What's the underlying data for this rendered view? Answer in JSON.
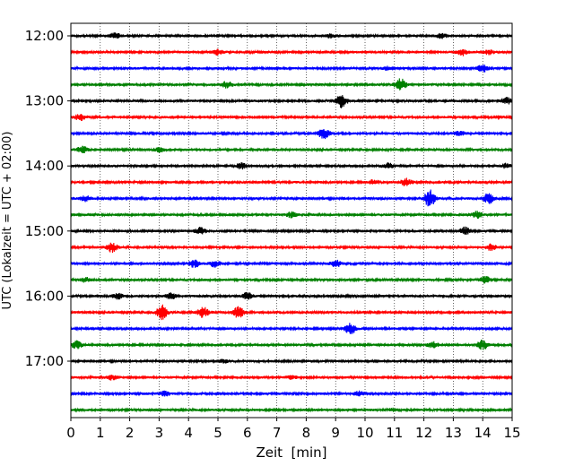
{
  "chart_data": {
    "type": "line",
    "title": "",
    "xlabel": "Zeit  [min]",
    "ylabel": "UTC (Lokalzeit = UTC + 02:00)",
    "xlim": [
      0,
      15
    ],
    "x_ticks": [
      0,
      1,
      2,
      3,
      4,
      5,
      6,
      7,
      8,
      9,
      10,
      11,
      12,
      13,
      14,
      15
    ],
    "x_tick_labels": [
      "0",
      "1",
      "2",
      "3",
      "4",
      "5",
      "6",
      "7",
      "8",
      "9",
      "10",
      "11",
      "12",
      "13",
      "14",
      "15"
    ],
    "y_tick_labels": [
      "12:00",
      "13:00",
      "14:00",
      "15:00",
      "16:00",
      "17:00"
    ],
    "grid": "vertical dotted lines at each minute",
    "trace_interval_min": 15,
    "color_cycle": [
      "#000000",
      "#ff0000",
      "#0000ff",
      "#008000"
    ],
    "series": [
      {
        "start": "12:00",
        "color": "#000000",
        "events": [
          {
            "t": 1.5,
            "amp": 0.25
          },
          {
            "t": 8.8,
            "amp": 0.15
          },
          {
            "t": 12.6,
            "amp": 0.2
          }
        ]
      },
      {
        "start": "12:15",
        "color": "#ff0000",
        "events": [
          {
            "t": 5.0,
            "amp": 0.25
          },
          {
            "t": 13.3,
            "amp": 0.3
          },
          {
            "t": 14.2,
            "amp": 0.2
          }
        ]
      },
      {
        "start": "12:30",
        "color": "#0000ff",
        "events": [
          {
            "t": 10.8,
            "amp": 0.15
          },
          {
            "t": 14.0,
            "amp": 0.35
          }
        ]
      },
      {
        "start": "12:45",
        "color": "#008000",
        "events": [
          {
            "t": 5.3,
            "amp": 0.3
          },
          {
            "t": 11.2,
            "amp": 0.6
          }
        ]
      },
      {
        "start": "13:00",
        "color": "#000000",
        "events": [
          {
            "t": 9.2,
            "amp": 0.65
          },
          {
            "t": 14.8,
            "amp": 0.3
          }
        ]
      },
      {
        "start": "13:15",
        "color": "#ff0000",
        "events": [
          {
            "t": 0.3,
            "amp": 0.3
          },
          {
            "t": 14.5,
            "amp": 0.15
          }
        ]
      },
      {
        "start": "13:30",
        "color": "#0000ff",
        "events": [
          {
            "t": 8.6,
            "amp": 0.55
          },
          {
            "t": 13.2,
            "amp": 0.2
          }
        ]
      },
      {
        "start": "13:45",
        "color": "#008000",
        "events": [
          {
            "t": 0.4,
            "amp": 0.3
          },
          {
            "t": 3.0,
            "amp": 0.2
          }
        ]
      },
      {
        "start": "14:00",
        "color": "#000000",
        "events": [
          {
            "t": 5.8,
            "amp": 0.25
          },
          {
            "t": 10.8,
            "amp": 0.25
          },
          {
            "t": 14.8,
            "amp": 0.2
          }
        ]
      },
      {
        "start": "14:15",
        "color": "#ff0000",
        "events": [
          {
            "t": 10.3,
            "amp": 0.2
          },
          {
            "t": 11.4,
            "amp": 0.35
          }
        ]
      },
      {
        "start": "14:30",
        "color": "#0000ff",
        "events": [
          {
            "t": 0.5,
            "amp": 0.25
          },
          {
            "t": 12.2,
            "amp": 0.85
          },
          {
            "t": 14.2,
            "amp": 0.5
          }
        ]
      },
      {
        "start": "14:45",
        "color": "#008000",
        "events": [
          {
            "t": 7.5,
            "amp": 0.25
          },
          {
            "t": 13.8,
            "amp": 0.3
          }
        ]
      },
      {
        "start": "15:00",
        "color": "#000000",
        "events": [
          {
            "t": 4.4,
            "amp": 0.3
          },
          {
            "t": 13.4,
            "amp": 0.35
          }
        ]
      },
      {
        "start": "15:15",
        "color": "#ff0000",
        "events": [
          {
            "t": 1.4,
            "amp": 0.45
          },
          {
            "t": 14.3,
            "amp": 0.3
          }
        ]
      },
      {
        "start": "15:30",
        "color": "#0000ff",
        "events": [
          {
            "t": 4.2,
            "amp": 0.35
          },
          {
            "t": 4.9,
            "amp": 0.3
          },
          {
            "t": 9.0,
            "amp": 0.35
          }
        ]
      },
      {
        "start": "15:45",
        "color": "#008000",
        "events": [
          {
            "t": 0.5,
            "amp": 0.2
          },
          {
            "t": 14.1,
            "amp": 0.3
          }
        ]
      },
      {
        "start": "16:00",
        "color": "#000000",
        "events": [
          {
            "t": 1.6,
            "amp": 0.25
          },
          {
            "t": 3.4,
            "amp": 0.3
          },
          {
            "t": 6.0,
            "amp": 0.3
          }
        ]
      },
      {
        "start": "16:15",
        "color": "#ff0000",
        "events": [
          {
            "t": 3.1,
            "amp": 0.75
          },
          {
            "t": 4.5,
            "amp": 0.5
          },
          {
            "t": 5.7,
            "amp": 0.55
          }
        ]
      },
      {
        "start": "16:30",
        "color": "#0000ff",
        "events": [
          {
            "t": 9.5,
            "amp": 0.55
          }
        ]
      },
      {
        "start": "16:45",
        "color": "#008000",
        "events": [
          {
            "t": 0.2,
            "amp": 0.35
          },
          {
            "t": 12.3,
            "amp": 0.3
          },
          {
            "t": 14.0,
            "amp": 0.45
          }
        ]
      },
      {
        "start": "17:00",
        "color": "#000000",
        "events": [
          {
            "t": 5.2,
            "amp": 0.15
          }
        ]
      },
      {
        "start": "17:15",
        "color": "#ff0000",
        "events": [
          {
            "t": 1.4,
            "amp": 0.2
          },
          {
            "t": 7.5,
            "amp": 0.15
          }
        ]
      },
      {
        "start": "17:30",
        "color": "#0000ff",
        "events": [
          {
            "t": 3.2,
            "amp": 0.2
          },
          {
            "t": 9.8,
            "amp": 0.2
          }
        ]
      },
      {
        "start": "17:45",
        "color": "#008000",
        "events": [
          {
            "t": 11.0,
            "amp": 0.15
          }
        ]
      }
    ]
  }
}
